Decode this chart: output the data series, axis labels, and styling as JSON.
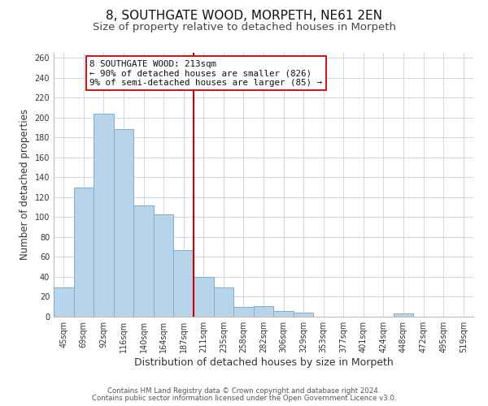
{
  "title": "8, SOUTHGATE WOOD, MORPETH, NE61 2EN",
  "subtitle": "Size of property relative to detached houses in Morpeth",
  "xlabel": "Distribution of detached houses by size in Morpeth",
  "ylabel": "Number of detached properties",
  "bar_labels": [
    "45sqm",
    "69sqm",
    "92sqm",
    "116sqm",
    "140sqm",
    "164sqm",
    "187sqm",
    "211sqm",
    "235sqm",
    "258sqm",
    "282sqm",
    "306sqm",
    "329sqm",
    "353sqm",
    "377sqm",
    "401sqm",
    "424sqm",
    "448sqm",
    "472sqm",
    "495sqm",
    "519sqm"
  ],
  "bar_values": [
    29,
    130,
    204,
    188,
    112,
    103,
    67,
    40,
    29,
    10,
    11,
    6,
    4,
    0,
    0,
    0,
    0,
    3,
    0,
    0,
    0
  ],
  "bar_color": "#b8d4ea",
  "bar_edge_color": "#7aaed0",
  "vline_x_index": 7,
  "vline_color": "#cc0000",
  "annotation_title": "8 SOUTHGATE WOOD: 213sqm",
  "annotation_line1": "← 90% of detached houses are smaller (826)",
  "annotation_line2": "9% of semi-detached houses are larger (85) →",
  "annotation_box_color": "#ffffff",
  "annotation_box_edge_color": "#cc0000",
  "ylim": [
    0,
    265
  ],
  "footer1": "Contains HM Land Registry data © Crown copyright and database right 2024.",
  "footer2": "Contains public sector information licensed under the Open Government Licence v3.0.",
  "background_color": "#ffffff",
  "grid_color": "#ccd8e8",
  "title_fontsize": 11,
  "subtitle_fontsize": 9.5,
  "tick_fontsize": 7,
  "xlabel_fontsize": 9,
  "ylabel_fontsize": 8.5
}
